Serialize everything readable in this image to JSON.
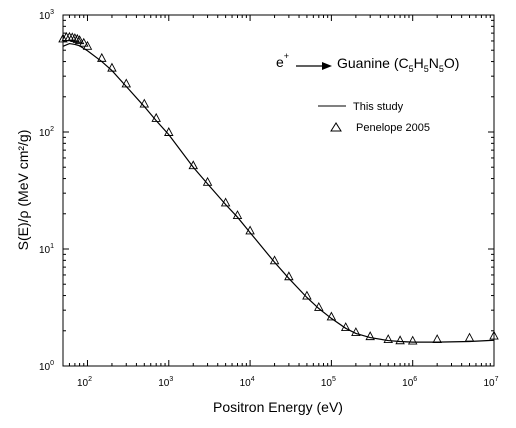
{
  "chart_data": {
    "type": "line",
    "x_scale": "log",
    "y_scale": "log",
    "xlabel": "Positron Energy (eV)",
    "ylabel": "S(E)/ρ (MeV cm²/g)",
    "xlim": [
      50,
      10000000
    ],
    "ylim": [
      1,
      1000
    ],
    "x_ticks": [
      {
        "value": 100,
        "mant": "10",
        "exp": "2"
      },
      {
        "value": 1000,
        "mant": "10",
        "exp": "3"
      },
      {
        "value": 10000,
        "mant": "10",
        "exp": "4"
      },
      {
        "value": 100000,
        "mant": "10",
        "exp": "5"
      },
      {
        "value": 1000000,
        "mant": "10",
        "exp": "6"
      },
      {
        "value": 10000000,
        "mant": "10",
        "exp": "7"
      }
    ],
    "y_ticks": [
      {
        "value": 1,
        "mant": "10",
        "exp": "0"
      },
      {
        "value": 10,
        "mant": "10",
        "exp": "1"
      },
      {
        "value": 100,
        "mant": "10",
        "exp": "2"
      },
      {
        "value": 1000,
        "mant": "10",
        "exp": "3"
      }
    ],
    "annotation": {
      "particle": "e",
      "particle_sup": "+",
      "target_prefix": "Guanine (C",
      "formula_parts": [
        {
          "t": "5",
          "sub": true
        },
        {
          "t": "H",
          "sub": false
        },
        {
          "t": "5",
          "sub": true
        },
        {
          "t": "N",
          "sub": false
        },
        {
          "t": "5",
          "sub": true
        },
        {
          "t": "O)",
          "sub": false
        }
      ]
    },
    "legend": {
      "position": "top-right",
      "entries": [
        {
          "label": "This study",
          "marker": "line"
        },
        {
          "label": "Penelope 2005",
          "marker": "triangle"
        }
      ]
    },
    "series": [
      {
        "name": "This study",
        "style": "line",
        "x": [
          50,
          60,
          70,
          80,
          100,
          150,
          200,
          300,
          500,
          700,
          1000,
          2000,
          3000,
          5000,
          7000,
          10000,
          20000,
          30000,
          50000,
          70000,
          100000,
          150000,
          200000,
          300000,
          500000,
          700000,
          1000000,
          2000000,
          5000000,
          10000000
        ],
        "y": [
          540,
          570,
          560,
          545,
          495,
          400,
          335,
          245,
          165,
          125,
          95,
          50,
          36,
          24,
          18.7,
          13.8,
          7.7,
          5.6,
          3.85,
          3.1,
          2.55,
          2.1,
          1.9,
          1.75,
          1.65,
          1.62,
          1.6,
          1.6,
          1.62,
          1.66
        ]
      },
      {
        "name": "Penelope 2005",
        "style": "triangle",
        "x": [
          50,
          55,
          60,
          65,
          70,
          75,
          80,
          90,
          100,
          150,
          200,
          300,
          500,
          700,
          1000,
          2000,
          3000,
          5000,
          7000,
          10000,
          20000,
          30000,
          50000,
          70000,
          100000,
          150000,
          200000,
          300000,
          500000,
          700000,
          1000000,
          2000000,
          5000000,
          10000000
        ],
        "y": [
          630,
          650,
          650,
          645,
          635,
          625,
          610,
          580,
          545,
          430,
          355,
          260,
          175,
          132,
          100,
          52,
          37.5,
          25,
          19.5,
          14.4,
          8.0,
          5.85,
          4.0,
          3.2,
          2.65,
          2.15,
          1.95,
          1.8,
          1.7,
          1.66,
          1.65,
          1.7,
          1.75,
          1.82
        ]
      }
    ]
  }
}
